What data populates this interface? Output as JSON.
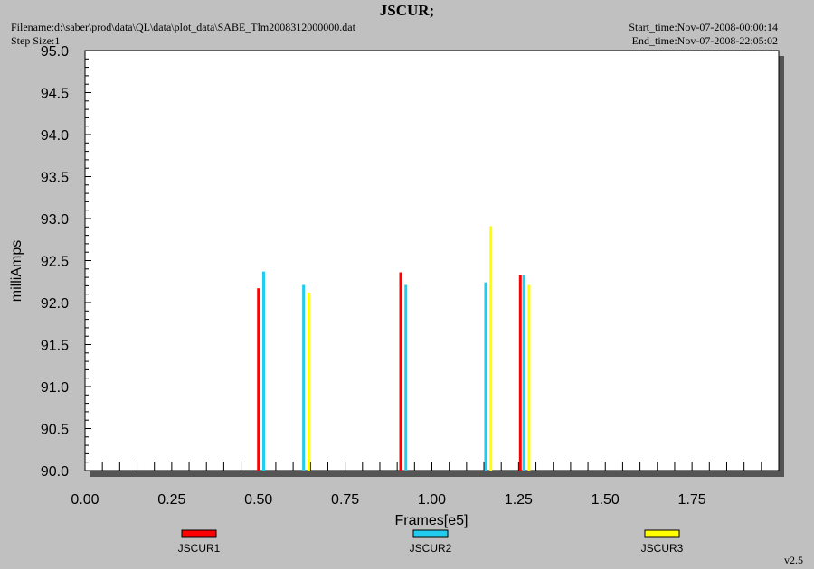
{
  "header": {
    "title": "JSCUR;",
    "filename": "Filename:d:\\saber\\prod\\data\\QL\\data\\plot_data\\SABE_Tlm2008312000000.dat",
    "step_size": "Step Size:1",
    "start_time": "Start_time:Nov-07-2008-00:00:14",
    "end_time": "End_time:Nov-07-2008-22:05:02"
  },
  "version": "v2.5",
  "chart_data": {
    "type": "bar",
    "xlabel": "Frames[e5]",
    "ylabel": "milliAmps",
    "xlim": [
      0.0,
      2.0
    ],
    "ylim": [
      90.0,
      95.0
    ],
    "xticks": [
      "0.00",
      "0.25",
      "0.50",
      "0.75",
      "1.00",
      "1.25",
      "1.50",
      "1.75"
    ],
    "yticks": [
      "90.0",
      "90.5",
      "91.0",
      "91.5",
      "92.0",
      "92.5",
      "93.0",
      "93.5",
      "94.0",
      "94.5",
      "95.0"
    ],
    "grid": false,
    "legend": "bottom",
    "series": [
      {
        "name": "JSCUR1",
        "color": "#ff0000",
        "x": [
          0.5,
          0.91,
          1.255
        ],
        "y": [
          92.17,
          92.36,
          92.33
        ]
      },
      {
        "name": "JSCUR2",
        "color": "#22ccee",
        "x": [
          0.515,
          0.63,
          0.925,
          1.155,
          1.265
        ],
        "y": [
          92.37,
          92.21,
          92.21,
          92.24,
          92.33
        ]
      },
      {
        "name": "JSCUR3",
        "color": "#ffff00",
        "x": [
          0.645,
          1.17,
          1.28
        ],
        "y": [
          92.12,
          92.91,
          92.21
        ]
      }
    ]
  }
}
